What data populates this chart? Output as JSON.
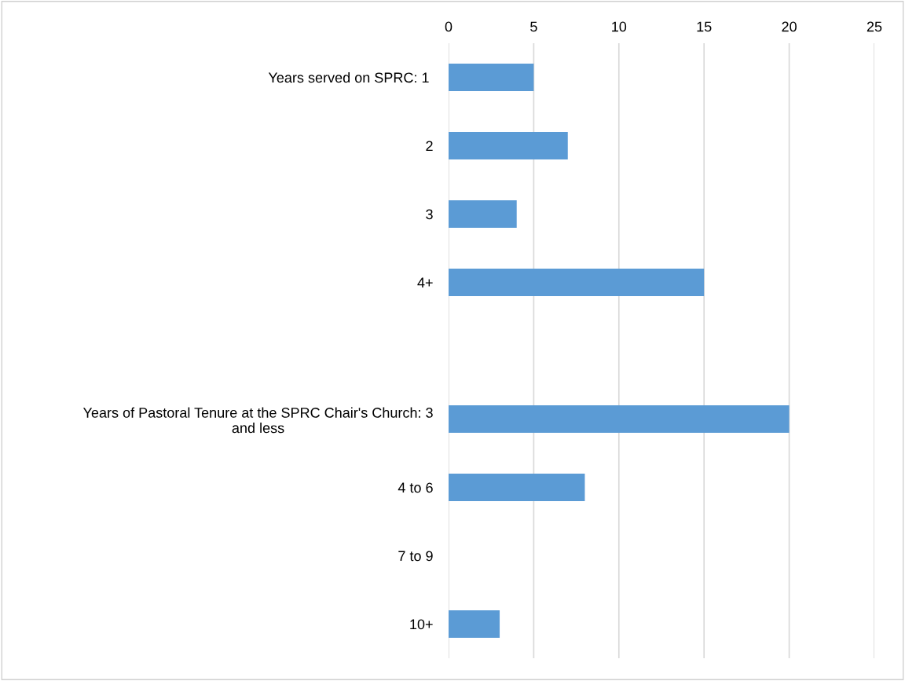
{
  "chart_data": {
    "type": "bar",
    "orientation": "horizontal",
    "categories": [
      "Years served on SPRC: 1 ",
      "2",
      "3",
      "4+",
      null,
      "Years of Pastoral Tenure at the SPRC Chair's Church: 3\nand less",
      "4 to 6",
      "7 to 9",
      "10+"
    ],
    "values": [
      5,
      7,
      4,
      15,
      null,
      20,
      8,
      0,
      3
    ],
    "color": "#5b9bd5",
    "xlim": [
      0,
      25
    ],
    "xticks": [
      0,
      5,
      10,
      15,
      20,
      25
    ],
    "grid": "x"
  }
}
